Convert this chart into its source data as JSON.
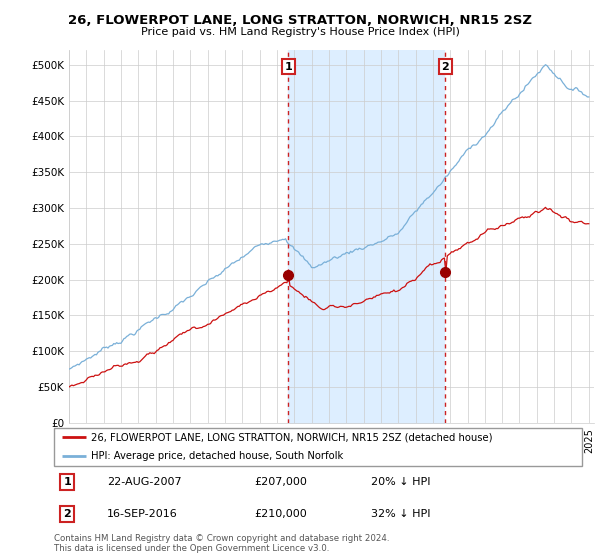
{
  "title": "26, FLOWERPOT LANE, LONG STRATTON, NORWICH, NR15 2SZ",
  "subtitle": "Price paid vs. HM Land Registry's House Price Index (HPI)",
  "legend_line1": "26, FLOWERPOT LANE, LONG STRATTON, NORWICH, NR15 2SZ (detached house)",
  "legend_line2": "HPI: Average price, detached house, South Norfolk",
  "sale1_date": "22-AUG-2007",
  "sale1_price": "£207,000",
  "sale1_hpi": "20% ↓ HPI",
  "sale1_year": 2007.65,
  "sale1_value": 207000,
  "sale2_date": "16-SEP-2016",
  "sale2_price": "£210,000",
  "sale2_hpi": "32% ↓ HPI",
  "sale2_year": 2016.71,
  "sale2_value": 210000,
  "hpi_color": "#7ab0d8",
  "hpi_shade_color": "#ddeeff",
  "price_color": "#cc1111",
  "vline_color": "#cc2222",
  "dot_color": "#990000",
  "yticks": [
    0,
    50000,
    100000,
    150000,
    200000,
    250000,
    300000,
    350000,
    400000,
    450000,
    500000
  ],
  "ytick_labels": [
    "£0",
    "£50K",
    "£100K",
    "£150K",
    "£200K",
    "£250K",
    "£300K",
    "£350K",
    "£400K",
    "£450K",
    "£500K"
  ],
  "background_color": "#ffffff",
  "grid_color": "#cccccc",
  "footer": "Contains HM Land Registry data © Crown copyright and database right 2024.\nThis data is licensed under the Open Government Licence v3.0."
}
